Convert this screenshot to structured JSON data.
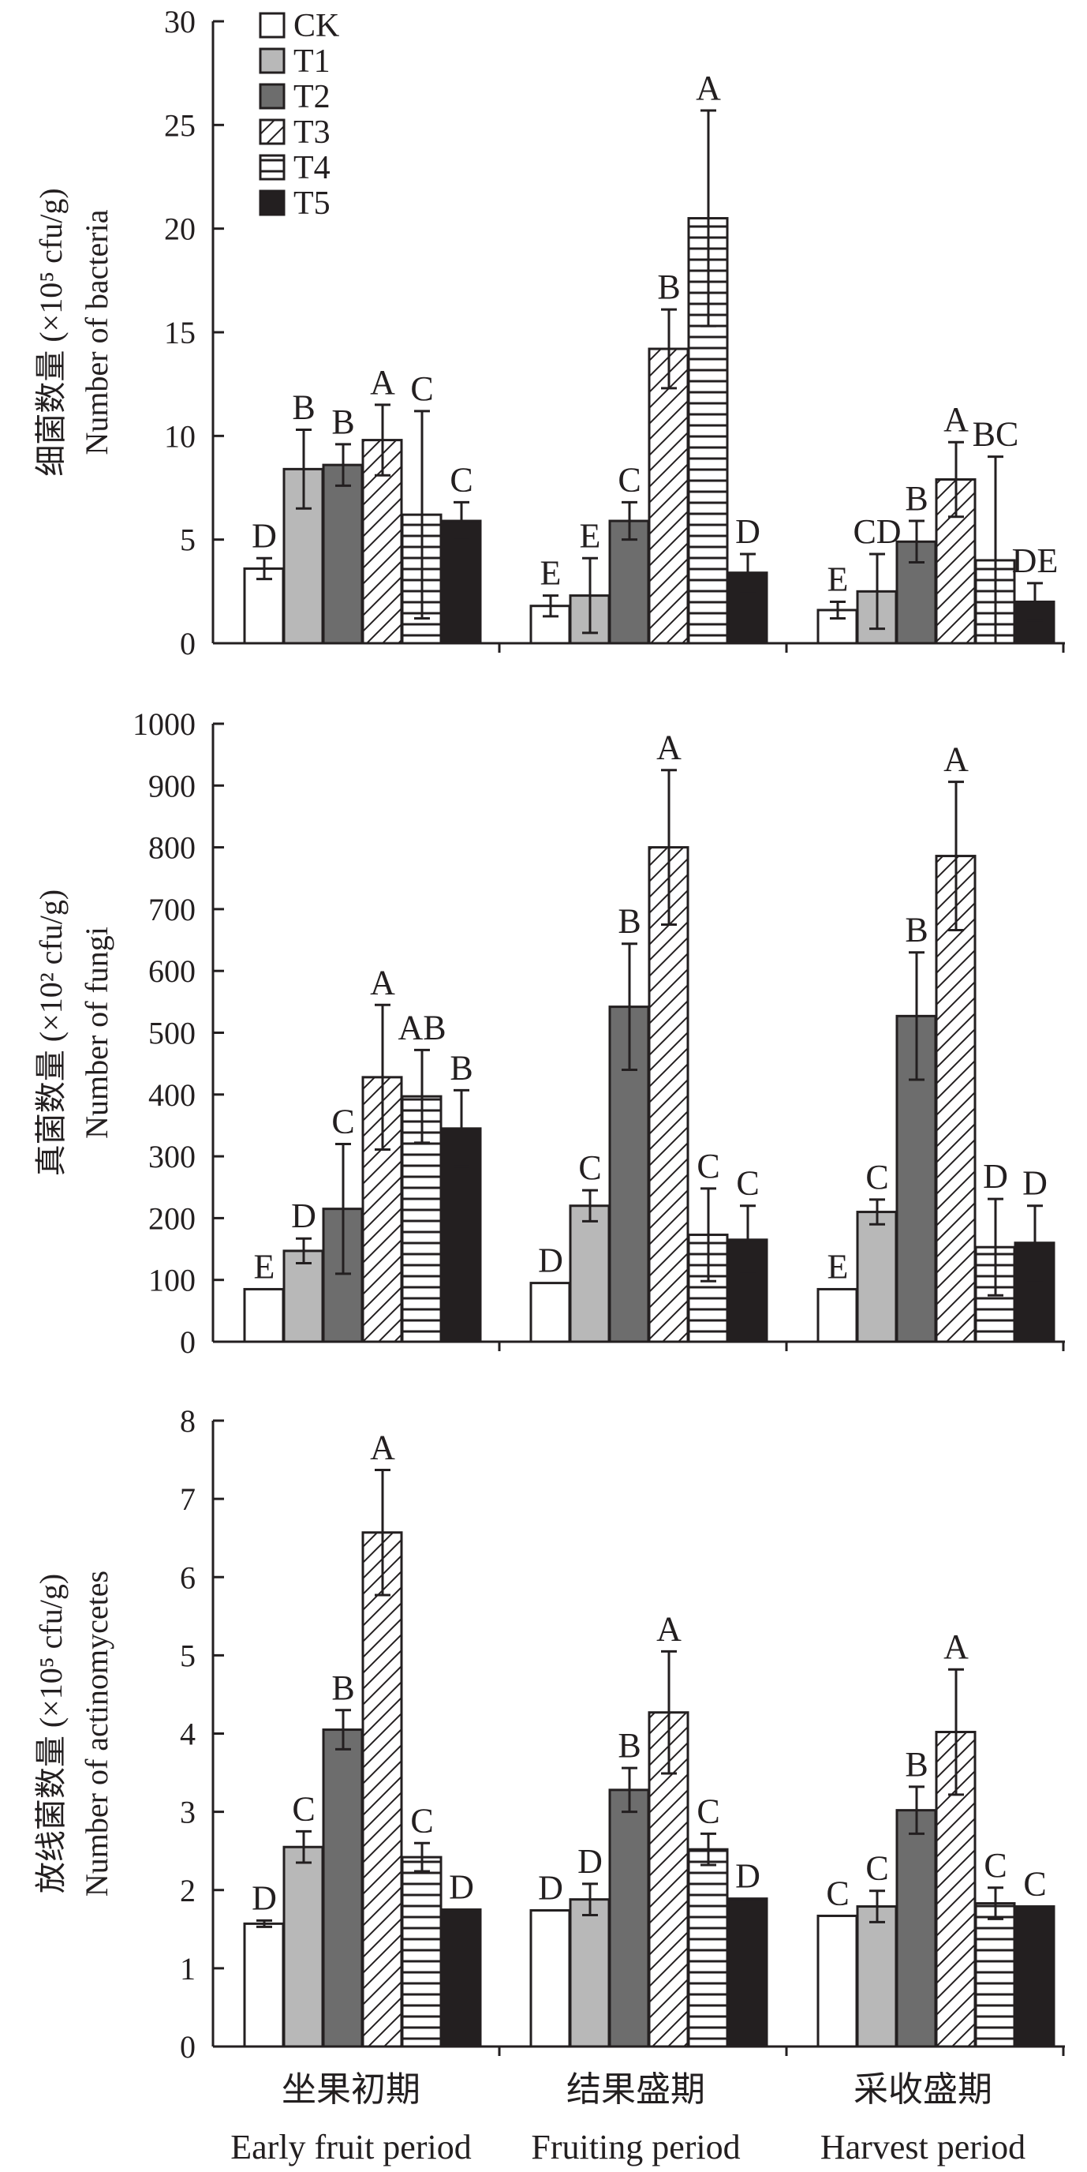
{
  "colors": {
    "ink": "#231f20",
    "CK": "#ffffff",
    "T1": "#b8b8b8",
    "T2": "#6d6d6d",
    "T3": "#ffffff",
    "T4": "#ffffff",
    "T5": "#231f20"
  },
  "chart_data": [
    {
      "type": "bar",
      "title": "",
      "ylabel_cn": "细菌数量 (×10⁵ cfu/g)",
      "ylabel_en": "Number of bacteria",
      "ylim": [
        0,
        30
      ],
      "yticks": [
        "0",
        "5",
        "10",
        "15",
        "20",
        "25",
        "30"
      ],
      "categories": [
        "坐果初期",
        "结果盛期",
        "采收盛期"
      ],
      "legend": [
        "CK",
        "T1",
        "T2",
        "T3",
        "T4",
        "T5"
      ],
      "series": [
        {
          "name": "CK",
          "values": [
            3.6,
            1.8,
            1.6
          ],
          "errors": [
            0.5,
            0.5,
            0.4
          ],
          "letters": [
            "D",
            "E",
            "E"
          ]
        },
        {
          "name": "T1",
          "values": [
            8.4,
            2.3,
            2.5
          ],
          "errors": [
            1.9,
            1.8,
            1.8
          ],
          "letters": [
            "B",
            "E",
            "CD"
          ]
        },
        {
          "name": "T2",
          "values": [
            8.6,
            5.9,
            4.9
          ],
          "errors": [
            1.0,
            0.9,
            1.0
          ],
          "letters": [
            "B",
            "C",
            "B"
          ]
        },
        {
          "name": "T3",
          "values": [
            9.8,
            14.2,
            7.9
          ],
          "errors": [
            1.7,
            1.9,
            1.8
          ],
          "letters": [
            "A",
            "B",
            "A"
          ]
        },
        {
          "name": "T4",
          "values": [
            6.2,
            20.5,
            4.0
          ],
          "errors": [
            5.0,
            5.2,
            5.0
          ],
          "letters": [
            "C",
            "A",
            "BC"
          ]
        },
        {
          "name": "T5",
          "values": [
            5.9,
            3.4,
            2.0
          ],
          "errors": [
            0.9,
            0.9,
            0.9
          ],
          "letters": [
            "C",
            "D",
            "DE"
          ]
        }
      ]
    },
    {
      "type": "bar",
      "title": "",
      "ylabel_cn": "真菌数量 (×10² cfu/g)",
      "ylabel_en": "Number of fungi",
      "ylim": [
        0,
        1000
      ],
      "yticks": [
        "0",
        "100",
        "200",
        "300",
        "400",
        "500",
        "600",
        "700",
        "800",
        "900",
        "1000"
      ],
      "categories": [
        "坐果初期",
        "结果盛期",
        "采收盛期"
      ],
      "series": [
        {
          "name": "CK",
          "values": [
            85,
            95,
            85
          ],
          "errors": [
            0,
            0,
            0
          ],
          "letters": [
            "E",
            "D",
            "E"
          ]
        },
        {
          "name": "T1",
          "values": [
            147,
            220,
            210
          ],
          "errors": [
            20,
            25,
            20
          ],
          "letters": [
            "D",
            "C",
            "C"
          ]
        },
        {
          "name": "T2",
          "values": [
            215,
            542,
            527
          ],
          "errors": [
            105,
            102,
            103
          ],
          "letters": [
            "C",
            "B",
            "B"
          ]
        },
        {
          "name": "T3",
          "values": [
            428,
            800,
            786
          ],
          "errors": [
            117,
            125,
            120
          ],
          "letters": [
            "A",
            "A",
            "A"
          ]
        },
        {
          "name": "T4",
          "values": [
            397,
            173,
            153
          ],
          "errors": [
            75,
            75,
            78
          ],
          "letters": [
            "AB",
            "C",
            "D"
          ]
        },
        {
          "name": "T5",
          "values": [
            345,
            165,
            160
          ],
          "errors": [
            62,
            55,
            60
          ],
          "letters": [
            "B",
            "C",
            "D"
          ]
        }
      ]
    },
    {
      "type": "bar",
      "title": "",
      "ylabel_cn": "放线菌数量 (×10⁵ cfu/g)",
      "ylabel_en": "Number of actinomycetes",
      "ylim": [
        0,
        8
      ],
      "yticks": [
        "0",
        "1",
        "2",
        "3",
        "4",
        "5",
        "6",
        "7",
        "8"
      ],
      "categories": [
        "坐果初期",
        "结果盛期",
        "采收盛期"
      ],
      "categories_en": [
        "Early fruit period",
        "Fruiting period",
        "Harvest period"
      ],
      "series": [
        {
          "name": "CK",
          "values": [
            1.57,
            1.74,
            1.67
          ],
          "errors": [
            0.04,
            0,
            0
          ],
          "letters": [
            "D",
            "D",
            "C"
          ]
        },
        {
          "name": "T1",
          "values": [
            2.55,
            1.88,
            1.79
          ],
          "errors": [
            0.2,
            0.2,
            0.2
          ],
          "letters": [
            "C",
            "D",
            "C"
          ]
        },
        {
          "name": "T2",
          "values": [
            4.05,
            3.28,
            3.02
          ],
          "errors": [
            0.25,
            0.28,
            0.3
          ],
          "letters": [
            "B",
            "B",
            "B"
          ]
        },
        {
          "name": "T3",
          "values": [
            6.57,
            4.27,
            4.02
          ],
          "errors": [
            0.8,
            0.78,
            0.8
          ],
          "letters": [
            "A",
            "A",
            "A"
          ]
        },
        {
          "name": "T4",
          "values": [
            2.42,
            2.52,
            1.83
          ],
          "errors": [
            0.18,
            0.2,
            0.2
          ],
          "letters": [
            "C",
            "C",
            "C"
          ]
        },
        {
          "name": "T5",
          "values": [
            1.75,
            1.89,
            1.79
          ],
          "errors": [
            0,
            0,
            0
          ],
          "letters": [
            "D",
            "D",
            "C"
          ]
        }
      ]
    }
  ]
}
